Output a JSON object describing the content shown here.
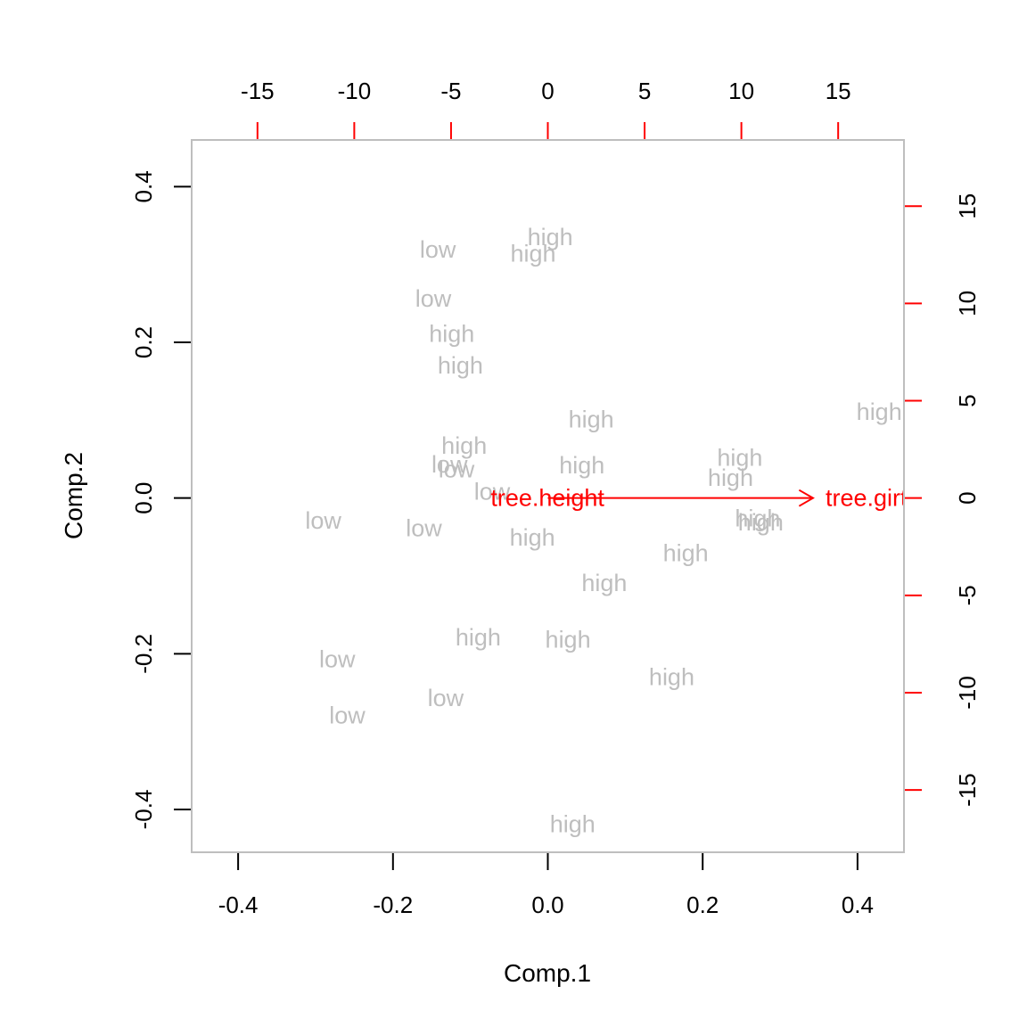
{
  "chart_data": {
    "type": "scatter",
    "title": "",
    "xlabel": "Comp.1",
    "ylabel": "Comp.2",
    "xlim": [
      -0.46,
      0.46
    ],
    "ylim": [
      -0.455,
      0.46
    ],
    "x_ticks": [
      -0.4,
      -0.2,
      0.0,
      0.2,
      0.4
    ],
    "x_tick_labels": [
      "-0.4",
      "-0.2",
      "0.0",
      "0.2",
      "0.4"
    ],
    "y_ticks": [
      -0.4,
      -0.2,
      0.0,
      0.2,
      0.4
    ],
    "y_tick_labels": [
      "-0.4",
      "-0.2",
      "0.0",
      "0.2",
      "0.4"
    ],
    "secondary_xlim": [
      -18.4,
      18.4
    ],
    "secondary_ylim": [
      -18.2,
      18.4
    ],
    "secondary_x_ticks": [
      -15,
      -10,
      -5,
      0,
      5,
      10,
      15
    ],
    "secondary_x_tick_labels": [
      "-15",
      "-10",
      "-5",
      "0",
      "5",
      "10",
      "15"
    ],
    "secondary_y_ticks": [
      -15,
      -10,
      -5,
      0,
      5,
      10,
      15
    ],
    "secondary_y_tick_labels": [
      "-15",
      "-10",
      "-5",
      "0",
      "5",
      "10",
      "15"
    ],
    "grid": false,
    "colors": {
      "points": "#bebebe",
      "loadings": "#ff0000",
      "axes": "#000000",
      "frame": "#bebebe"
    },
    "points": [
      {
        "label": "low",
        "x": -0.142,
        "y": 0.319
      },
      {
        "label": "low",
        "x": -0.148,
        "y": 0.256
      },
      {
        "label": "low",
        "x": -0.29,
        "y": -0.029
      },
      {
        "label": "low",
        "x": -0.16,
        "y": -0.039
      },
      {
        "label": "low",
        "x": -0.127,
        "y": 0.043
      },
      {
        "label": "low",
        "x": -0.118,
        "y": 0.037
      },
      {
        "label": "low",
        "x": -0.072,
        "y": 0.008
      },
      {
        "label": "low",
        "x": -0.272,
        "y": -0.207
      },
      {
        "label": "low",
        "x": -0.259,
        "y": -0.279
      },
      {
        "label": "low",
        "x": -0.132,
        "y": -0.257
      },
      {
        "label": "high",
        "x": 0.003,
        "y": 0.335
      },
      {
        "label": "high",
        "x": -0.019,
        "y": 0.314
      },
      {
        "label": "high",
        "x": -0.124,
        "y": 0.211
      },
      {
        "label": "high",
        "x": -0.113,
        "y": 0.17
      },
      {
        "label": "high",
        "x": 0.056,
        "y": 0.101
      },
      {
        "label": "high",
        "x": -0.108,
        "y": 0.067
      },
      {
        "label": "high",
        "x": 0.044,
        "y": 0.042
      },
      {
        "label": "high",
        "x": 0.248,
        "y": 0.052
      },
      {
        "label": "high",
        "x": 0.236,
        "y": 0.026
      },
      {
        "label": "high",
        "x": 0.428,
        "y": 0.111
      },
      {
        "label": "high",
        "x": 0.271,
        "y": -0.026
      },
      {
        "label": "high",
        "x": 0.275,
        "y": -0.031
      },
      {
        "label": "high",
        "x": -0.02,
        "y": -0.051
      },
      {
        "label": "high",
        "x": 0.178,
        "y": -0.071
      },
      {
        "label": "high",
        "x": 0.073,
        "y": -0.109
      },
      {
        "label": "high",
        "x": -0.09,
        "y": -0.179
      },
      {
        "label": "high",
        "x": 0.026,
        "y": -0.182
      },
      {
        "label": "high",
        "x": 0.16,
        "y": -0.23
      },
      {
        "label": "high",
        "x": 0.032,
        "y": -0.419
      }
    ],
    "loadings": [
      {
        "label": "tree.height",
        "x": 0.0,
        "y": 0.0,
        "label_x": -0.016,
        "label_y": 0.0
      },
      {
        "label": "tree.girth",
        "x": 13.7,
        "y": 0.0,
        "label_x": 16.8,
        "label_y": 0.0
      }
    ]
  }
}
